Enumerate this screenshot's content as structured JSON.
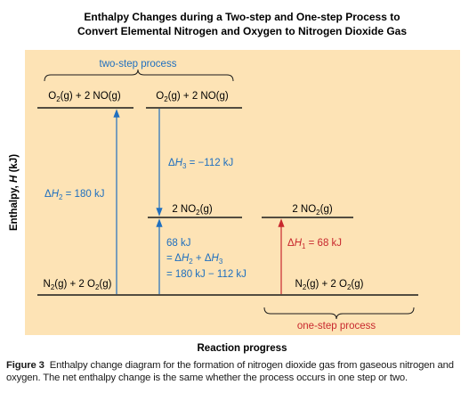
{
  "title_line1": "Enthalpy Changes during a Two-step and One-step Process to",
  "title_line2": "Convert Elemental Nitrogen and Oxygen to Nitrogen Dioxide Gas",
  "y_axis_label": "Enthalpy, H (kJ)",
  "x_axis_label": "Reaction progress",
  "two_step_label": "two-step process",
  "one_step_label": "one-step process",
  "levels": {
    "top_left": "O2(g) + 2 NO(g)",
    "top_right": "O2(g) + 2 NO(g)",
    "mid_left": "2 NO2(g)",
    "mid_right": "2 NO2(g)",
    "bottom_left": "N2(g) + 2 O2(g)",
    "bottom_right": "N2(g) + 2 O2(g)"
  },
  "annotations": {
    "dh2": "ΔH2 = 180 kJ",
    "dh3": "ΔH3 = −112 kJ",
    "sum_line1": "68 kJ",
    "sum_line2": "= ΔH2 + ΔH3",
    "sum_line3": "= 180 kJ − 112 kJ",
    "dh1": "ΔH1 = 68 kJ"
  },
  "caption": {
    "figure_label": "Figure 3",
    "text": "Enthalpy change diagram for the formation of nitrogen dioxide gas from gaseous nitrogen and oxygen. The net enthalpy change is the same whether the process occurs in one step or two."
  },
  "colors": {
    "panel_background": "#fde3b5",
    "blue": "#1f6fbf",
    "red": "#c8282e"
  }
}
